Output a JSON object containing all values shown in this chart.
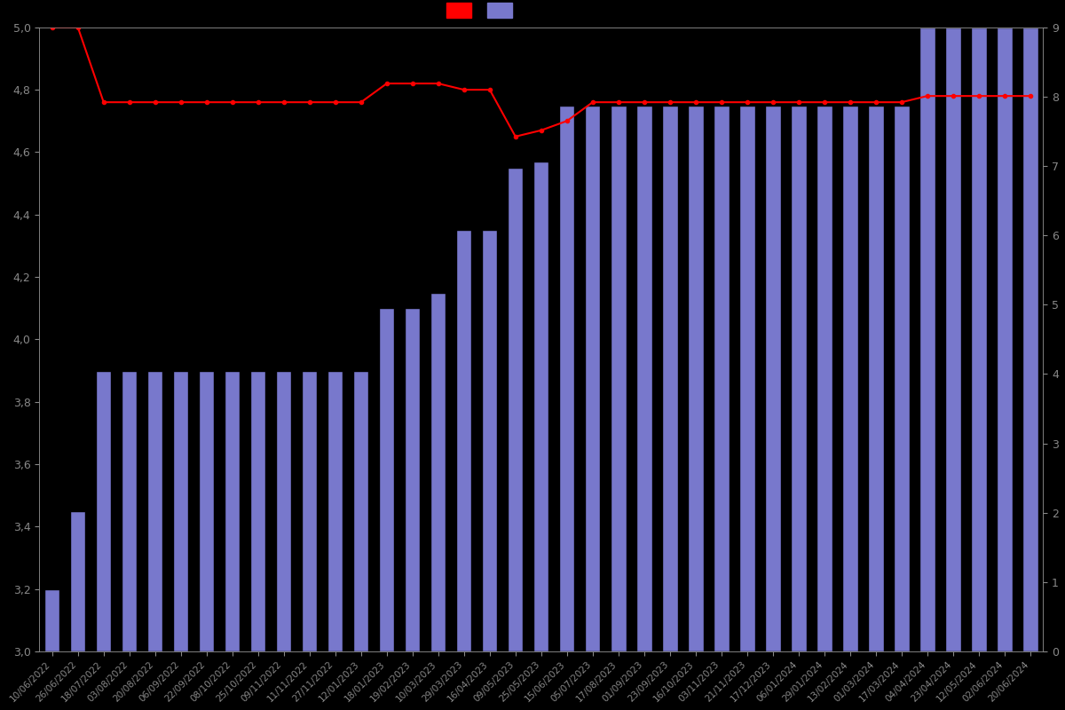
{
  "background_color": "#000000",
  "text_color": "#888888",
  "bar_color": "#7878cc",
  "bar_edge_color": "#000000",
  "line_color": "#ff0000",
  "line_markersize": 3,
  "ylim_left": [
    3.0,
    5.0
  ],
  "ylim_right": [
    0,
    9
  ],
  "dates": [
    "10/06/2022",
    "26/06/2022",
    "18/07/2022",
    "03/08/2022",
    "20/08/2022",
    "06/09/2022",
    "22/09/2022",
    "08/10/2022",
    "25/10/2022",
    "09/11/2022",
    "11/11/2022",
    "27/11/2022",
    "12/01/2023",
    "18/01/2023",
    "19/02/2023",
    "10/03/2023",
    "29/03/2023",
    "16/04/2023",
    "09/05/2023",
    "25/05/2023",
    "15/06/2023",
    "05/07/2023",
    "17/08/2023",
    "01/09/2023",
    "23/09/2023",
    "16/10/2023",
    "03/11/2023",
    "21/11/2023",
    "17/12/2023",
    "06/01/2024",
    "29/01/2024",
    "13/02/2024",
    "01/03/2024",
    "17/03/2024",
    "04/04/2024",
    "23/04/2024",
    "12/05/2024",
    "02/06/2024",
    "20/06/2024"
  ],
  "bar_values": [
    3.2,
    3.45,
    3.9,
    3.9,
    3.9,
    3.9,
    3.9,
    3.9,
    3.9,
    3.9,
    3.9,
    3.9,
    3.9,
    4.1,
    4.1,
    4.15,
    4.35,
    4.35,
    4.55,
    4.57,
    4.75,
    4.75,
    4.75,
    4.75,
    4.75,
    4.75,
    4.75,
    4.75,
    4.75,
    4.75,
    4.75,
    4.75,
    4.75,
    4.75,
    5.0,
    5.0,
    5.0,
    5.0,
    5.0
  ],
  "line_values": [
    5.0,
    5.0,
    4.76,
    4.76,
    4.76,
    4.76,
    4.76,
    4.76,
    4.76,
    4.76,
    4.76,
    4.76,
    4.76,
    4.82,
    4.82,
    4.82,
    4.8,
    4.8,
    4.65,
    4.67,
    4.7,
    4.76,
    4.76,
    4.76,
    4.76,
    4.76,
    4.76,
    4.76,
    4.76,
    4.76,
    4.76,
    4.76,
    4.76,
    4.76,
    4.78,
    4.78,
    4.78,
    4.78,
    4.78
  ],
  "yticks_left": [
    3.0,
    3.2,
    3.4,
    3.6,
    3.8,
    4.0,
    4.2,
    4.4,
    4.6,
    4.8,
    5.0
  ],
  "yticks_right": [
    0,
    1,
    2,
    3,
    4,
    5,
    6,
    7,
    8,
    9
  ],
  "bar_width": 0.6,
  "figsize": [
    12.0,
    8.0
  ],
  "dpi": 100
}
